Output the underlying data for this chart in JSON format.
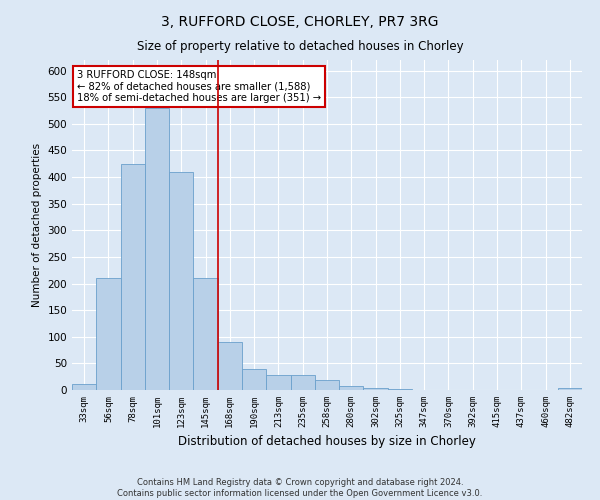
{
  "title": "3, RUFFORD CLOSE, CHORLEY, PR7 3RG",
  "subtitle": "Size of property relative to detached houses in Chorley",
  "xlabel": "Distribution of detached houses by size in Chorley",
  "ylabel": "Number of detached properties",
  "bar_labels": [
    "33sqm",
    "56sqm",
    "78sqm",
    "101sqm",
    "123sqm",
    "145sqm",
    "168sqm",
    "190sqm",
    "213sqm",
    "235sqm",
    "258sqm",
    "280sqm",
    "302sqm",
    "325sqm",
    "347sqm",
    "370sqm",
    "392sqm",
    "415sqm",
    "437sqm",
    "460sqm",
    "482sqm"
  ],
  "bar_values": [
    12,
    210,
    425,
    530,
    410,
    210,
    90,
    40,
    28,
    28,
    18,
    8,
    3,
    1,
    0,
    0,
    0,
    0,
    0,
    0,
    4
  ],
  "bar_color": "#b8d0e8",
  "bar_edge_color": "#6aa0cc",
  "annotation_line1": "3 RUFFORD CLOSE: 148sqm",
  "annotation_line2": "← 82% of detached houses are smaller (1,588)",
  "annotation_line3": "18% of semi-detached houses are larger (351) →",
  "redline_x": 5.5,
  "ylim": [
    0,
    620
  ],
  "yticks": [
    0,
    50,
    100,
    150,
    200,
    250,
    300,
    350,
    400,
    450,
    500,
    550,
    600
  ],
  "footer1": "Contains HM Land Registry data © Crown copyright and database right 2024.",
  "footer2": "Contains public sector information licensed under the Open Government Licence v3.0.",
  "background_color": "#dce8f5",
  "plot_bg_color": "#dce8f5",
  "grid_color": "#ffffff",
  "annotation_box_color": "#ffffff",
  "annotation_box_edge": "#cc0000",
  "redline_color": "#cc0000"
}
